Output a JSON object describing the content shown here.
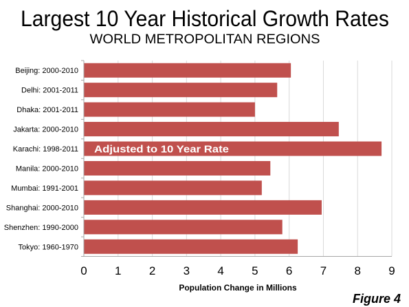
{
  "figure_label": "Figure 4",
  "colors": {
    "bar": "#C0504D",
    "grid": "#D9D9D9",
    "axis": "#A6A6A6",
    "annotation_text": "#FFFFFF"
  },
  "chart_data": {
    "type": "bar",
    "orientation": "horizontal",
    "title": "Largest 10 Year Historical Growth Rates",
    "subtitle": "WORLD METROPOLITAN REGIONS",
    "categories": [
      "Beijing: 2000-2010",
      "Delhi: 2001-2011",
      "Dhaka: 2001-2011",
      "Jakarta: 2000-2010",
      "Karachi: 1998-2011",
      "Manila: 2000-2010",
      "Mumbai: 1991-2001",
      "Shanghai: 2000-2010",
      "Shenzhen: 1990-2000",
      "Tokyo: 1960-1970"
    ],
    "values": [
      6.05,
      5.65,
      5.0,
      7.45,
      8.7,
      5.45,
      5.2,
      6.95,
      5.8,
      6.25
    ],
    "xlabel": "Population Change in Millions",
    "ylabel": "",
    "xlim": [
      0,
      9
    ],
    "xticks": [
      "0",
      "1",
      "2",
      "3",
      "4",
      "5",
      "6",
      "7",
      "8",
      "9"
    ],
    "grid": "vertical",
    "legend": "none",
    "annotations": [
      {
        "category": "Karachi: 1998-2011",
        "text": "Adjusted to 10 Year Rate"
      }
    ]
  }
}
